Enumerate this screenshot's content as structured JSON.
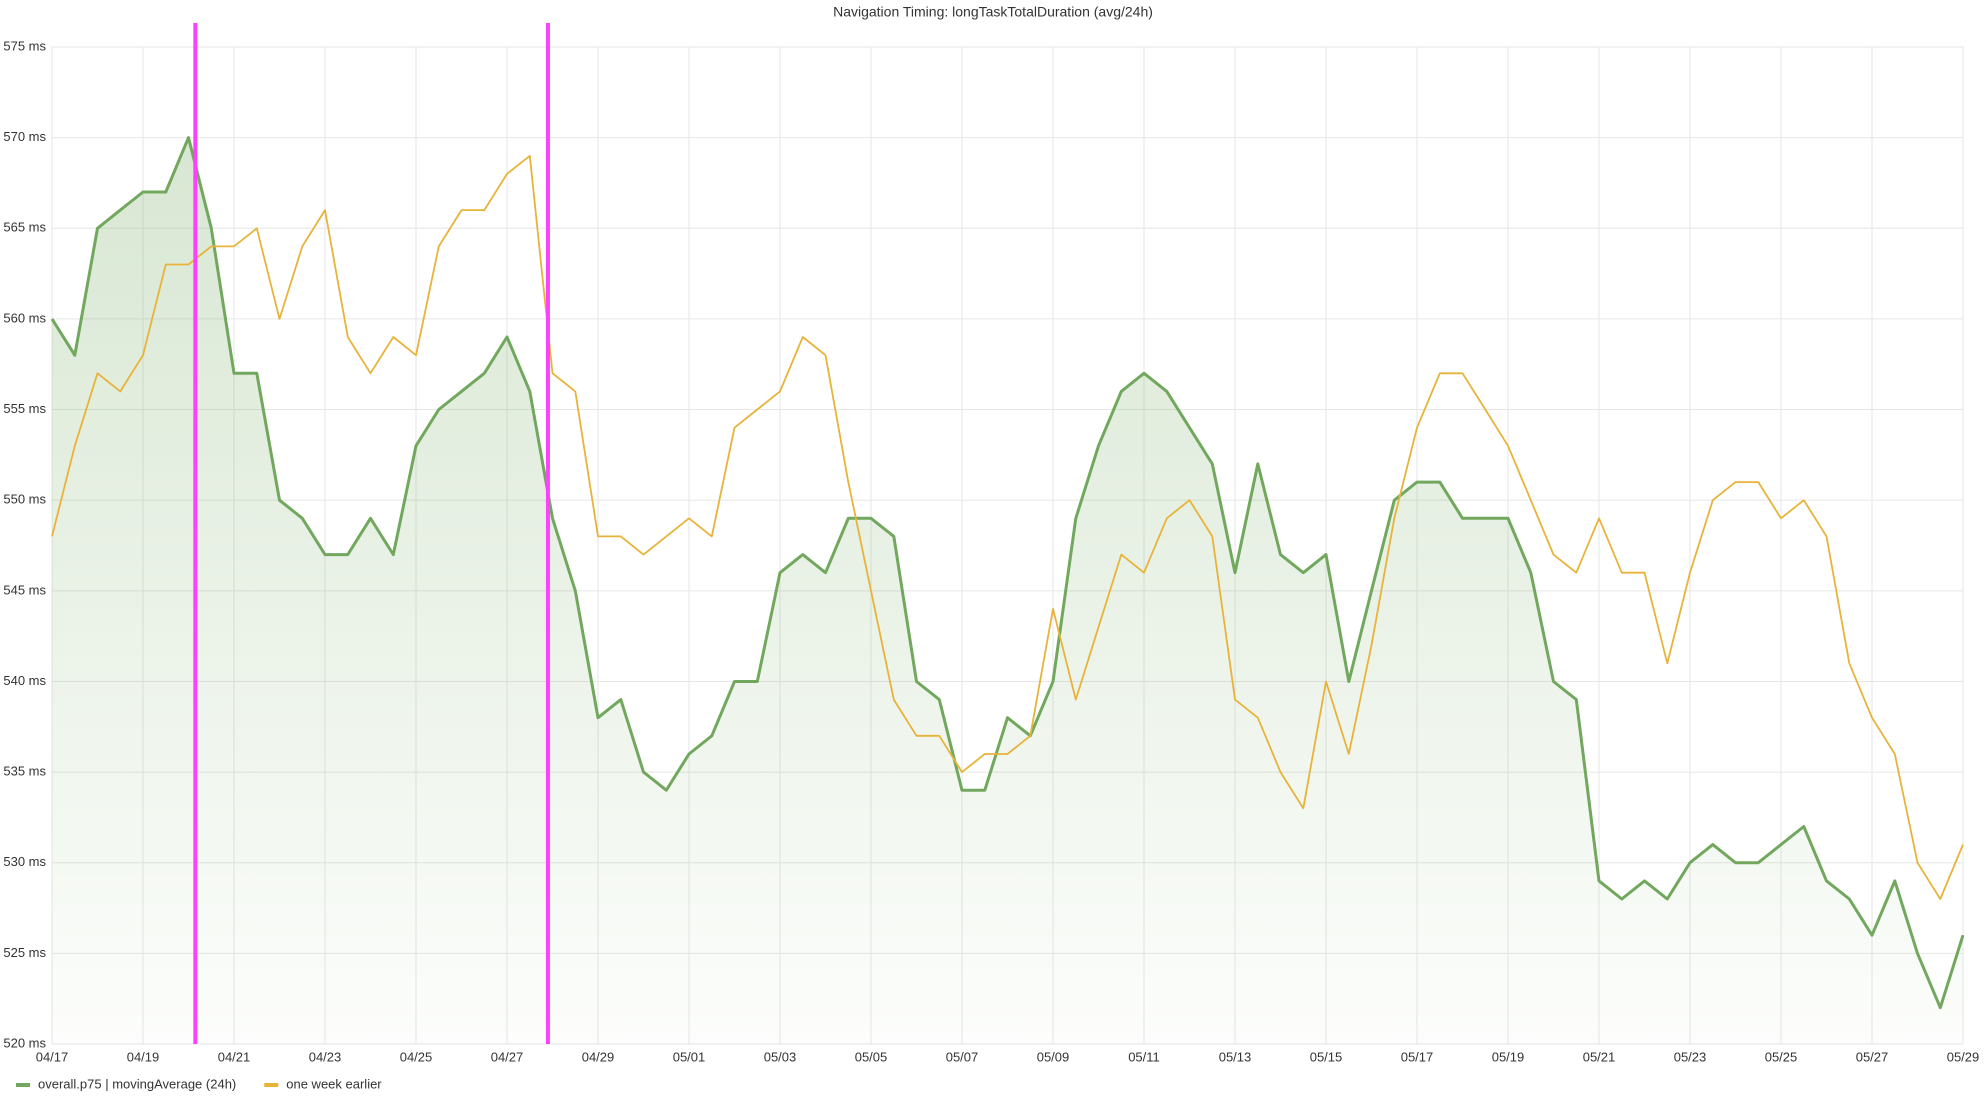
{
  "chart_data": {
    "type": "line",
    "title": "Navigation Timing: longTaskTotalDuration (avg/24h)",
    "categories": [
      "04/17",
      null,
      null,
      null,
      "04/19",
      null,
      null,
      null,
      "04/21",
      null,
      null,
      null,
      "04/23",
      null,
      null,
      null,
      "04/25",
      null,
      null,
      null,
      "04/27",
      null,
      null,
      null,
      "04/29",
      null,
      null,
      null,
      "05/01",
      null,
      null,
      null,
      "05/03",
      null,
      null,
      null,
      "05/05",
      null,
      null,
      null,
      "05/07",
      null,
      null,
      null,
      "05/09",
      null,
      null,
      null,
      "05/11",
      null,
      null,
      null,
      "05/13",
      null,
      null,
      null,
      "05/15",
      null,
      null,
      null,
      "05/17",
      null,
      null,
      null,
      "05/19",
      null,
      null,
      null,
      "05/21",
      null,
      null,
      null,
      "05/23",
      null,
      null,
      null,
      "05/25",
      null,
      null,
      null,
      "05/27",
      null,
      null,
      null,
      "05/29"
    ],
    "series": [
      {
        "name": "overall.p75 | movingAverage (24h)",
        "color": "#72a85e",
        "fill": true,
        "values": [
          560,
          558,
          565,
          566,
          567,
          567,
          570,
          565,
          557,
          557,
          550,
          549,
          547,
          547,
          549,
          547,
          553,
          555,
          556,
          557,
          559,
          556,
          549,
          545,
          538,
          539,
          535,
          534,
          536,
          537,
          540,
          540,
          546,
          547,
          546,
          549,
          549,
          548,
          540,
          539,
          534,
          534,
          538,
          537,
          540,
          549,
          553,
          556,
          557,
          556,
          554,
          552,
          546,
          552,
          547,
          546,
          547,
          540,
          545,
          550,
          551,
          551,
          549,
          549,
          549,
          546,
          540,
          539,
          529,
          528,
          529,
          528,
          530,
          531,
          530,
          530,
          531,
          532,
          529,
          528,
          526,
          529,
          525,
          522,
          526
        ]
      },
      {
        "name": "one week earlier",
        "color": "#e8b339",
        "fill": false,
        "values": [
          548,
          553,
          557,
          556,
          558,
          563,
          563,
          564,
          564,
          565,
          560,
          564,
          566,
          559,
          557,
          559,
          558,
          564,
          566,
          566,
          568,
          569,
          557,
          556,
          548,
          548,
          547,
          548,
          549,
          548,
          554,
          555,
          556,
          559,
          558,
          551,
          545,
          539,
          537,
          537,
          535,
          536,
          536,
          537,
          544,
          539,
          543,
          547,
          546,
          549,
          550,
          548,
          539,
          538,
          535,
          533,
          540,
          536,
          542,
          549,
          554,
          557,
          557,
          555,
          553,
          550,
          547,
          546,
          549,
          546,
          546,
          541,
          546,
          550,
          551,
          551,
          549,
          550,
          548,
          541,
          538,
          536,
          530,
          528,
          531
        ]
      }
    ],
    "annotations": {
      "color": "#ff40ff",
      "x": [
        6.3,
        21.8
      ]
    },
    "ylim": [
      520,
      575
    ],
    "yticks": [
      {
        "value": 520,
        "label": "520 ms"
      },
      {
        "value": 525,
        "label": "525 ms"
      },
      {
        "value": 530,
        "label": "530 ms"
      },
      {
        "value": 535,
        "label": "535 ms"
      },
      {
        "value": 540,
        "label": "540 ms"
      },
      {
        "value": 545,
        "label": "545 ms"
      },
      {
        "value": 550,
        "label": "550 ms"
      },
      {
        "value": 555,
        "label": "555 ms"
      },
      {
        "value": 560,
        "label": "560 ms"
      },
      {
        "value": 565,
        "label": "565 ms"
      },
      {
        "value": 570,
        "label": "570 ms"
      },
      {
        "value": 575,
        "label": "575 ms"
      }
    ],
    "grid": true
  }
}
